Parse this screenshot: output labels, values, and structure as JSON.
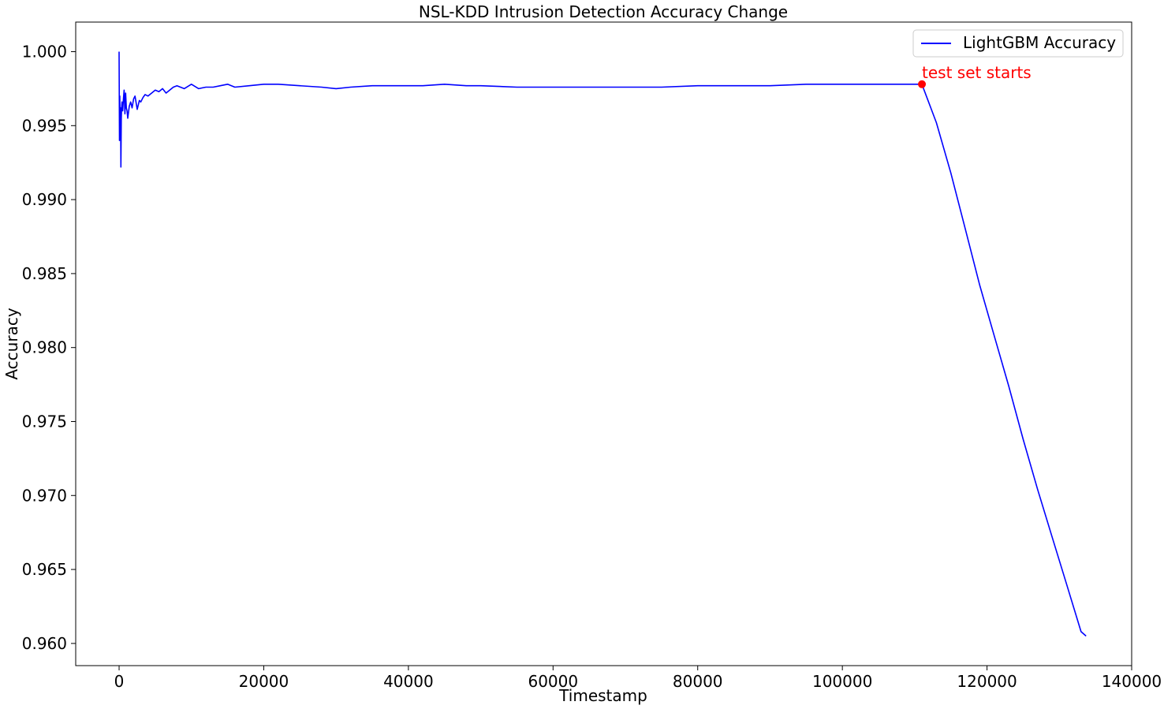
{
  "chart_data": {
    "type": "line",
    "title": "NSL-KDD Intrusion Detection Accuracy Change",
    "xlabel": "Timestamp",
    "ylabel": "Accuracy",
    "xlim": [
      -6000,
      140000
    ],
    "ylim": [
      0.9585,
      1.002
    ],
    "xticks": [
      0,
      20000,
      40000,
      60000,
      80000,
      100000,
      120000,
      140000
    ],
    "xtick_labels": [
      "0",
      "20000",
      "40000",
      "60000",
      "80000",
      "100000",
      "120000",
      "140000"
    ],
    "yticks": [
      0.96,
      0.965,
      0.97,
      0.975,
      0.98,
      0.985,
      0.99,
      0.995,
      1.0
    ],
    "ytick_labels": [
      "0.960",
      "0.965",
      "0.970",
      "0.975",
      "0.980",
      "0.985",
      "0.990",
      "0.995",
      "1.000"
    ],
    "grid": false,
    "legend_position": "top-right",
    "series": [
      {
        "name": "LightGBM Accuracy",
        "color": "#0000ff",
        "x": [
          0,
          50,
          100,
          150,
          200,
          250,
          300,
          350,
          400,
          500,
          600,
          700,
          800,
          900,
          1000,
          1100,
          1200,
          1400,
          1600,
          1800,
          2000,
          2200,
          2500,
          2800,
          3000,
          3300,
          3600,
          4000,
          4500,
          5000,
          5500,
          6000,
          6500,
          7000,
          7500,
          8000,
          9000,
          10000,
          11000,
          12000,
          13000,
          14000,
          15000,
          16000,
          18000,
          20000,
          22000,
          25000,
          28000,
          30000,
          32000,
          35000,
          38000,
          40000,
          42000,
          45000,
          48000,
          50000,
          55000,
          60000,
          65000,
          70000,
          75000,
          80000,
          85000,
          90000,
          95000,
          100000,
          105000,
          108000,
          111000,
          113000,
          115000,
          117000,
          119000,
          121000,
          123000,
          125000,
          127000,
          129000,
          131000,
          133000,
          133700
        ],
        "y": [
          1.0,
          0.994,
          0.997,
          0.9943,
          0.9962,
          0.9922,
          0.9955,
          0.9962,
          0.9966,
          0.996,
          0.9968,
          0.9974,
          0.9958,
          0.9972,
          0.9962,
          0.996,
          0.9955,
          0.9963,
          0.9966,
          0.9962,
          0.9968,
          0.997,
          0.9961,
          0.9967,
          0.9966,
          0.9969,
          0.9971,
          0.997,
          0.9972,
          0.9974,
          0.9973,
          0.9975,
          0.9972,
          0.9974,
          0.9976,
          0.9977,
          0.9975,
          0.9978,
          0.9975,
          0.9976,
          0.9976,
          0.9977,
          0.9978,
          0.9976,
          0.9977,
          0.9978,
          0.9978,
          0.9977,
          0.9976,
          0.9975,
          0.9976,
          0.9977,
          0.9977,
          0.9977,
          0.9977,
          0.9978,
          0.9977,
          0.9977,
          0.9976,
          0.9976,
          0.9976,
          0.9976,
          0.9976,
          0.9977,
          0.9977,
          0.9977,
          0.9978,
          0.9978,
          0.9978,
          0.9978,
          0.9978,
          0.9952,
          0.9918,
          0.988,
          0.9842,
          0.9808,
          0.9774,
          0.9738,
          0.9704,
          0.9672,
          0.964,
          0.9608,
          0.9605
        ]
      }
    ],
    "annotation": {
      "text": "test set starts",
      "x": 111000,
      "y": 0.9978,
      "color": "#ff0000"
    }
  }
}
